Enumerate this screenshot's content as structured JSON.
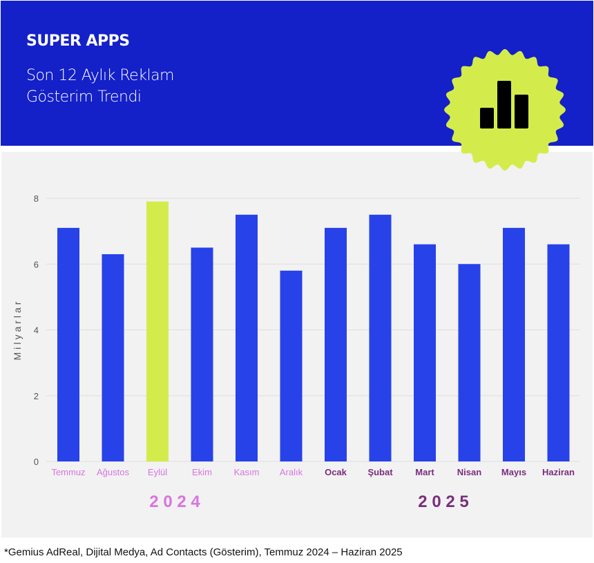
{
  "header": {
    "brand": "SUPER APPS",
    "subtitle_line1": "Son 12 Aylık Reklam",
    "subtitle_line2": "Gösterim Trendi",
    "badge_icon": "bar-chart-icon",
    "background_color": "#1420c8",
    "badge_color": "#d4ec4b"
  },
  "chart_data": {
    "type": "bar",
    "title": "Son 12 Aylık Reklam Gösterim Trendi",
    "xlabel": "",
    "ylabel": "Milyarlar",
    "ylim": [
      0,
      8
    ],
    "yticks": [
      "0",
      "2",
      "4",
      "6",
      "8"
    ],
    "grid": true,
    "categories": [
      "Temmuz",
      "Ağustos",
      "Eylül",
      "Ekim",
      "Kasım",
      "Aralık",
      "Ocak",
      "Şubat",
      "Mart",
      "Nisan",
      "Mayıs",
      "Haziran"
    ],
    "years": [
      "2024",
      "2024",
      "2024",
      "2024",
      "2024",
      "2024",
      "2025",
      "2025",
      "2025",
      "2025",
      "2025",
      "2025"
    ],
    "values": [
      7.1,
      6.3,
      7.9,
      6.5,
      7.5,
      5.8,
      7.1,
      7.5,
      6.6,
      6.0,
      7.1,
      6.6
    ],
    "highlight_index": 2,
    "bar_color": "#2742e8",
    "highlight_color": "#d4ec4b",
    "year_labels": [
      {
        "text": "2 0 2 4",
        "color": "#d974e0"
      },
      {
        "text": "2 0 2 5",
        "color": "#7a2d7e"
      }
    ]
  },
  "footnote": "*Gemius AdReal, Dijital Medya, Ad Contacts (Gösterim), Temmuz 2024 – Haziran 2025"
}
